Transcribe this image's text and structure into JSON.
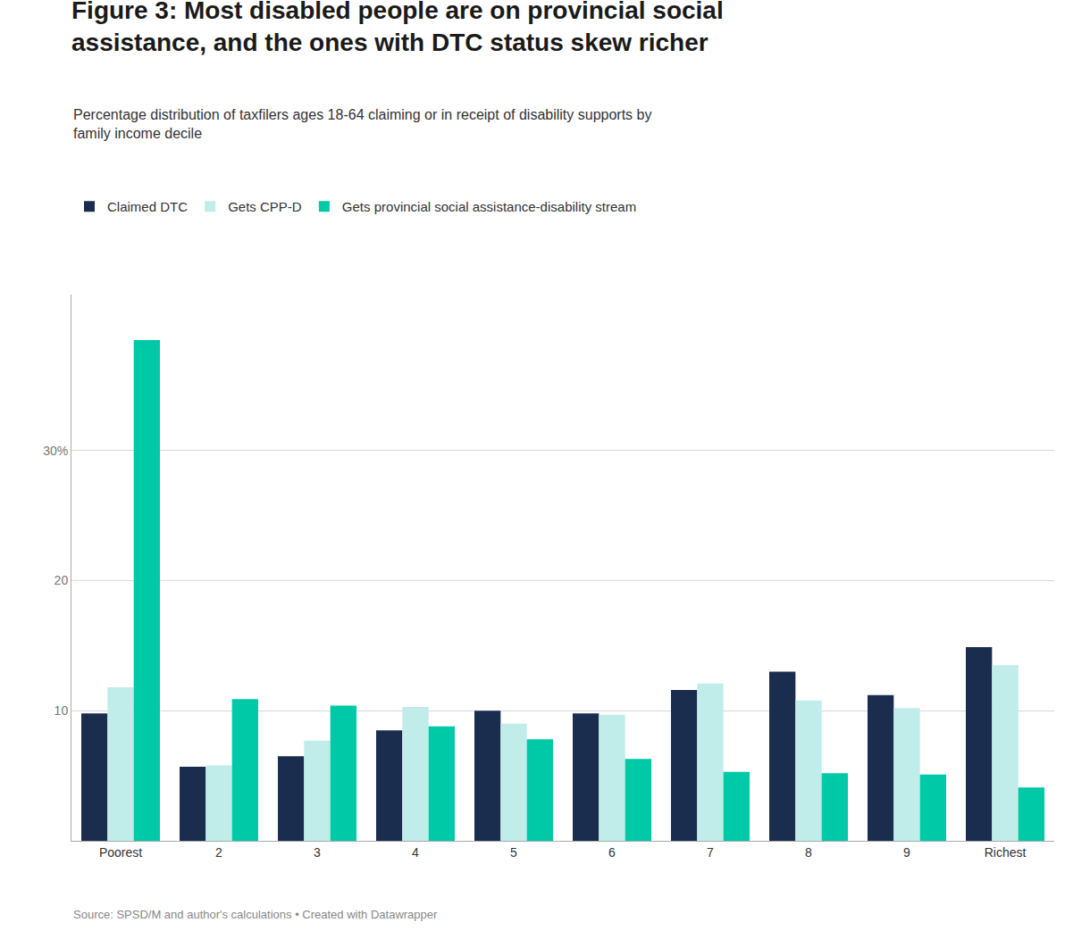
{
  "chart_data": {
    "type": "bar",
    "title": "Figure 3: Most disabled people are on provincial social\nassistance, and the ones with DTC status skew richer",
    "subtitle": "Percentage distribution of taxfilers ages 18-64 claiming or in receipt of disability supports by\nfamily income decile",
    "annotations": [
      "Source: SPSD/M and author's calculations • Created with Datawrapper"
    ],
    "categories": [
      "Poorest",
      "2",
      "3",
      "4",
      "5",
      "6",
      "7",
      "8",
      "9",
      "Richest"
    ],
    "series": [
      {
        "name": "Claimed DTC",
        "color": "#1b2d4f",
        "values": [
          9.8,
          5.7,
          6.5,
          8.5,
          10.0,
          9.8,
          11.6,
          13.0,
          11.2,
          14.9
        ]
      },
      {
        "name": "Gets CPP-D",
        "color": "#c0ede9",
        "values": [
          11.8,
          5.8,
          7.7,
          10.3,
          9.0,
          9.7,
          12.1,
          10.8,
          10.2,
          13.5
        ]
      },
      {
        "name": "Gets provincial social assistance-disability stream",
        "color": "#00c9a7",
        "values": [
          38.5,
          10.9,
          10.4,
          8.8,
          7.8,
          6.3,
          5.3,
          5.2,
          5.1,
          4.1
        ]
      }
    ],
    "ylim": [
      0,
      42
    ],
    "yticks": [
      10,
      20,
      {
        "value": 30,
        "label": "30%"
      }
    ],
    "grid": true,
    "legend": "upper left"
  }
}
